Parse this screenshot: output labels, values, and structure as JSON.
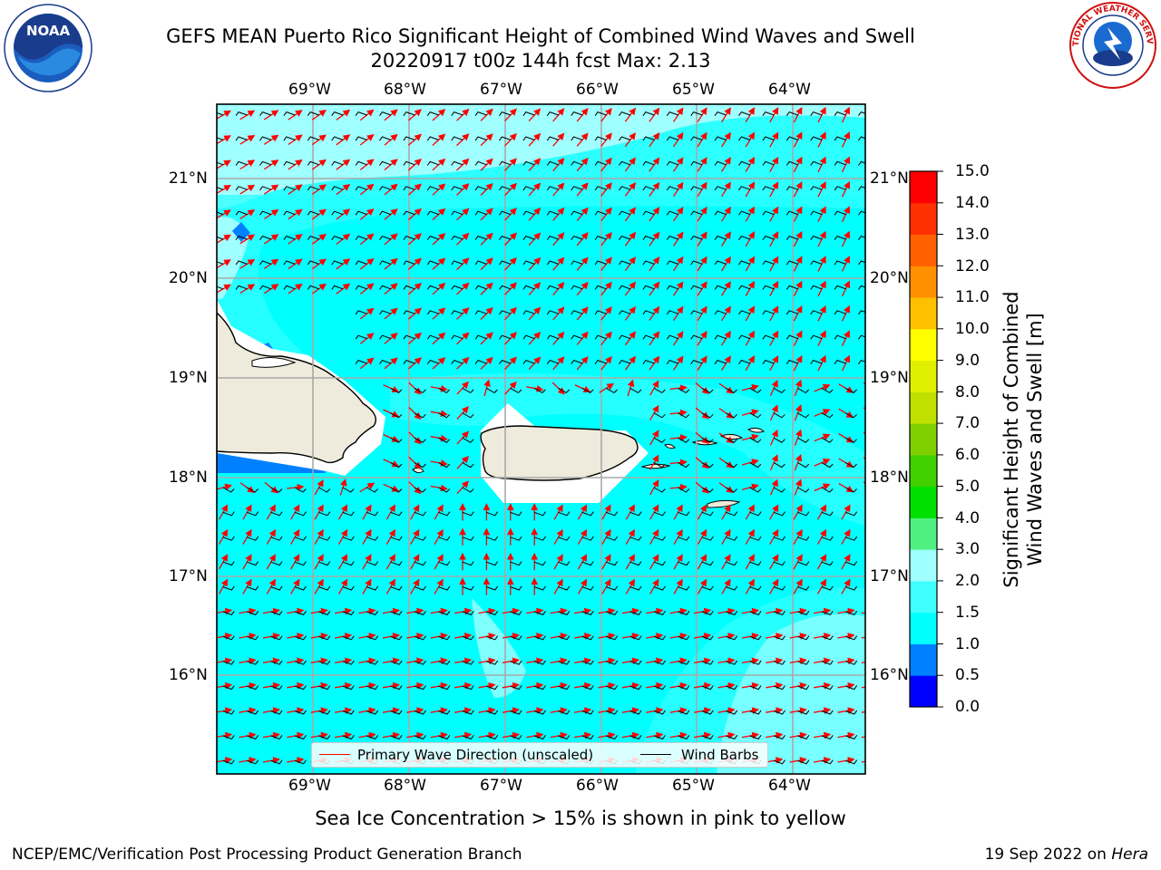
{
  "title": {
    "line1": "GEFS MEAN Puerto Rico Significant Height of Combined Wind Waves and Swell",
    "line2": "20220917 t00z 144h fcst   Max: 2.13"
  },
  "logos": {
    "noaa_text": "NOAA",
    "nws_text": "NATIONAL WEATHER SERVICE"
  },
  "map": {
    "lon_labels": [
      "69°W",
      "68°W",
      "67°W",
      "66°W",
      "65°W",
      "64°W"
    ],
    "lat_labels": [
      "21°N",
      "20°N",
      "19°N",
      "18°N",
      "17°N",
      "16°N"
    ],
    "ocean_color": "#00ffff",
    "land_color": "#eeeadc",
    "arrow_color": "#ff0000",
    "barb_color": "#000000"
  },
  "legend": {
    "wave_label": "Primary Wave Direction (unscaled)",
    "barb_label": "Wind Barbs"
  },
  "colorbar": {
    "title_line1": "Significant Height of Combined",
    "title_line2": "Wind Waves and Swell [m]",
    "ticks": [
      "0.0",
      "0.5",
      "1.0",
      "1.5",
      "2.0",
      "3.0",
      "4.0",
      "5.0",
      "6.0",
      "7.0",
      "8.0",
      "9.0",
      "10.0",
      "11.0",
      "12.0",
      "13.0",
      "14.0",
      "15.0"
    ],
    "colors": [
      "#0000ff",
      "#0080ff",
      "#00ffff",
      "#40ffff",
      "#a0ffff",
      "#50f080",
      "#00e000",
      "#40d000",
      "#80d000",
      "#c0e000",
      "#e0f000",
      "#ffff00",
      "#ffc000",
      "#ff9000",
      "#ff6000",
      "#ff3000",
      "#ff0000"
    ]
  },
  "subtitle": "Sea Ice Concentration > 15% is shown in pink to yellow",
  "footer": {
    "left": "NCEP/EMC/Verification Post Processing Product Generation Branch",
    "right_prefix": "19 Sep 2022 on ",
    "right_host": "Hera"
  }
}
